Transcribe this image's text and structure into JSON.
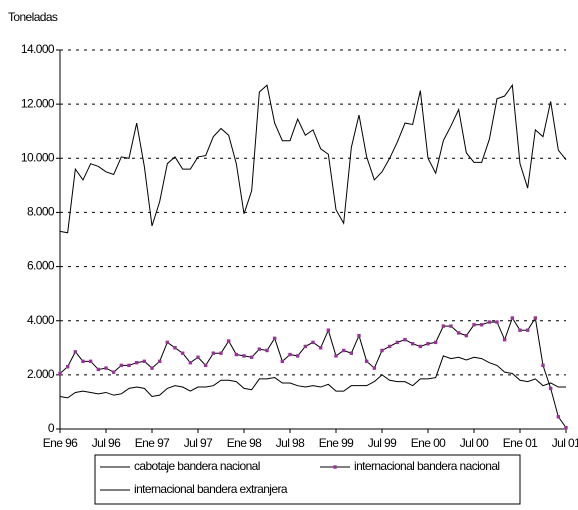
{
  "chart_data": {
    "type": "line",
    "ylabel": "Toneladas",
    "categories": [
      "Ene 96",
      null,
      null,
      null,
      null,
      null,
      "Jul 96",
      null,
      null,
      null,
      null,
      null,
      "Ene 97",
      null,
      null,
      null,
      null,
      null,
      "Jul 97",
      null,
      null,
      null,
      null,
      null,
      "Ene 98",
      null,
      null,
      null,
      null,
      null,
      "Jul 98",
      null,
      null,
      null,
      null,
      null,
      "Ene 99",
      null,
      null,
      null,
      null,
      null,
      "Jul 99",
      null,
      null,
      null,
      null,
      null,
      "Ene 00",
      null,
      null,
      null,
      null,
      null,
      "Jul 00",
      null,
      null,
      null,
      null,
      null,
      "Ene 01",
      null,
      null,
      null,
      null,
      null,
      "Jul 01"
    ],
    "series": [
      {
        "name": "cabotaje bandera nacional",
        "color": "#000000",
        "values": [
          1200,
          1150,
          1350,
          1400,
          1350,
          1300,
          1350,
          1250,
          1300,
          1500,
          1550,
          1500,
          1200,
          1250,
          1500,
          1600,
          1550,
          1400,
          1550,
          1550,
          1600,
          1800,
          1800,
          1750,
          1500,
          1450,
          1850,
          1850,
          1900,
          1700,
          1700,
          1600,
          1550,
          1600,
          1550,
          1650,
          1400,
          1400,
          1600,
          1600,
          1600,
          1750,
          2000,
          1800,
          1750,
          1750,
          1600,
          1850,
          1850,
          1900,
          2700,
          2600,
          2650,
          2550,
          2650,
          2600,
          2450,
          2350,
          2100,
          2050,
          1800,
          1750,
          1850,
          1600,
          1700,
          1550,
          1550
        ]
      },
      {
        "name": "internacional bandera nacional",
        "color": "#000000",
        "marker": "square",
        "marker_color": "#993399",
        "values": [
          2050,
          2300,
          2850,
          2500,
          2500,
          2200,
          2250,
          2100,
          2350,
          2350,
          2450,
          2500,
          2250,
          2500,
          3200,
          3000,
          2800,
          2450,
          2650,
          2350,
          2800,
          2800,
          3250,
          2750,
          2700,
          2650,
          2950,
          2900,
          3350,
          2500,
          2750,
          2700,
          3050,
          3200,
          3000,
          3650,
          2700,
          2900,
          2800,
          3450,
          2500,
          2250,
          2900,
          3050,
          3200,
          3300,
          3150,
          3050,
          3150,
          3200,
          3800,
          3800,
          3550,
          3450,
          3850,
          3850,
          3950,
          3950,
          3300,
          4100,
          3650,
          3650,
          4100,
          2350,
          1500,
          450,
          50
        ]
      },
      {
        "name": "internacional bandera extranjera",
        "color": "#000000",
        "values": [
          7300,
          7250,
          9600,
          9200,
          9800,
          9700,
          9500,
          9400,
          10050,
          10000,
          11300,
          9700,
          7500,
          8400,
          9800,
          10050,
          9600,
          9600,
          10050,
          10100,
          10800,
          11100,
          10850,
          9800,
          7950,
          8800,
          12450,
          12700,
          11300,
          10650,
          10650,
          11450,
          10850,
          11050,
          10350,
          10150,
          8100,
          7600,
          10400,
          11600,
          10050,
          9200,
          9500,
          10000,
          10600,
          11300,
          11250,
          12500,
          10000,
          9450,
          10650,
          11200,
          11800,
          10200,
          9850,
          9850,
          10700,
          12200,
          12300,
          12700,
          9800,
          8900,
          11050,
          10800,
          12100,
          10300,
          9950
        ]
      }
    ],
    "ylim": [
      0,
      14000
    ],
    "yticks": [
      0,
      {
        "value": 2000,
        "label": "2.000"
      },
      {
        "value": 4000,
        "label": "4.000"
      },
      {
        "value": 6000,
        "label": "6.000"
      },
      {
        "value": 8000,
        "label": "8.000"
      },
      {
        "value": 10000,
        "label": "10.000"
      },
      {
        "value": 12000,
        "label": "12.000"
      },
      {
        "value": 14000,
        "label": "14.000"
      }
    ],
    "grid": true,
    "legend": "bottom"
  }
}
